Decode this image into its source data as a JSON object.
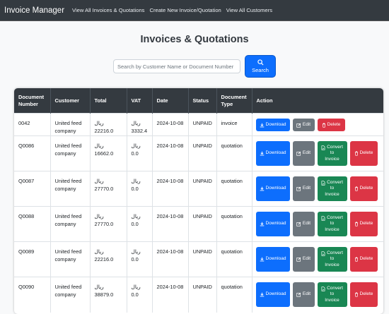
{
  "navbar": {
    "brand": "Invoice Manager",
    "links": [
      "View All Invoices & Quotations",
      "Create New Invoice/Quotation",
      "View All Customers"
    ]
  },
  "page": {
    "title": "Invoices & Quotations"
  },
  "search": {
    "placeholder": "Search by Customer Name or Document Number",
    "button_label": "Search"
  },
  "table": {
    "headers": [
      "Document Number",
      "Customer",
      "Total",
      "VAT",
      "Date",
      "Status",
      "Document Type",
      "Action"
    ],
    "currency_symbol": "ريال",
    "rows": [
      {
        "number": "0042",
        "customer": "United feed company",
        "total": "22216.0",
        "vat": "3332.4",
        "date": "2024-10-08",
        "status": "UNPAID",
        "type": "invoice"
      },
      {
        "number": "Q0086",
        "customer": "United feed company",
        "total": "16662.0",
        "vat": "0.0",
        "date": "2024-10-08",
        "status": "UNPAID",
        "type": "quotation"
      },
      {
        "number": "Q0087",
        "customer": "United feed company",
        "total": "27770.0",
        "vat": "0.0",
        "date": "2024-10-08",
        "status": "UNPAID",
        "type": "quotation"
      },
      {
        "number": "Q0088",
        "customer": "United feed company",
        "total": "27770.0",
        "vat": "0.0",
        "date": "2024-10-08",
        "status": "UNPAID",
        "type": "quotation"
      },
      {
        "number": "Q0089",
        "customer": "United feed company",
        "total": "22216.0",
        "vat": "0.0",
        "date": "2024-10-08",
        "status": "UNPAID",
        "type": "quotation"
      },
      {
        "number": "Q0090",
        "customer": "United feed company",
        "total": "38879.0",
        "vat": "0.0",
        "date": "2024-10-08",
        "status": "UNPAID",
        "type": "quotation"
      }
    ]
  },
  "actions": {
    "download": "Download",
    "edit": "Edit",
    "convert_line1": "Convert",
    "convert_line2": "to",
    "convert_line3": "Invoice",
    "delete": "Delete"
  },
  "colors": {
    "navbar": "#343a40",
    "primary": "#0d6efd",
    "secondary": "#6c757d",
    "success": "#198754",
    "danger": "#dc3545"
  }
}
